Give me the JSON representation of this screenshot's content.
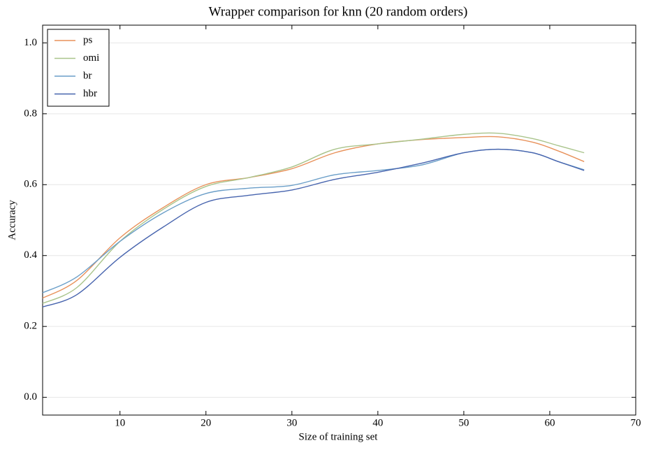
{
  "chart_data": {
    "type": "line",
    "title": "Wrapper comparison for knn (20 random orders)",
    "xlabel": "Size of training set",
    "ylabel": "Accuracy",
    "x": [
      1,
      5,
      10,
      15,
      20,
      25,
      30,
      35,
      40,
      45,
      50,
      54,
      58,
      61,
      64
    ],
    "series": [
      {
        "name": "ps",
        "color": "#e8915a",
        "values": [
          0.28,
          0.33,
          0.45,
          0.535,
          0.6,
          0.62,
          0.645,
          0.69,
          0.715,
          0.727,
          0.733,
          0.735,
          0.72,
          0.695,
          0.665
        ]
      },
      {
        "name": "omi",
        "color": "#a9c48b",
        "values": [
          0.265,
          0.31,
          0.44,
          0.53,
          0.595,
          0.62,
          0.65,
          0.7,
          0.715,
          0.728,
          0.742,
          0.745,
          0.73,
          0.71,
          0.69
        ]
      },
      {
        "name": "br",
        "color": "#6a9ec8",
        "values": [
          0.295,
          0.34,
          0.44,
          0.52,
          0.575,
          0.59,
          0.598,
          0.628,
          0.64,
          0.655,
          0.69,
          0.7,
          0.69,
          0.665,
          0.642
        ]
      },
      {
        "name": "hbr",
        "color": "#4764ae",
        "values": [
          0.255,
          0.29,
          0.395,
          0.48,
          0.55,
          0.57,
          0.585,
          0.615,
          0.635,
          0.66,
          0.69,
          0.7,
          0.69,
          0.665,
          0.64
        ]
      }
    ],
    "xlim": [
      1,
      70
    ],
    "xticks": [
      10,
      20,
      30,
      40,
      50,
      60,
      70
    ],
    "ylim": [
      -0.05,
      1.05
    ],
    "yticks": [
      {
        "value": 0,
        "label": "0.0"
      },
      0.2,
      0.4,
      0.6,
      0.8,
      {
        "value": 1,
        "label": "1.0"
      }
    ],
    "grid": true,
    "legend": "upper left"
  }
}
